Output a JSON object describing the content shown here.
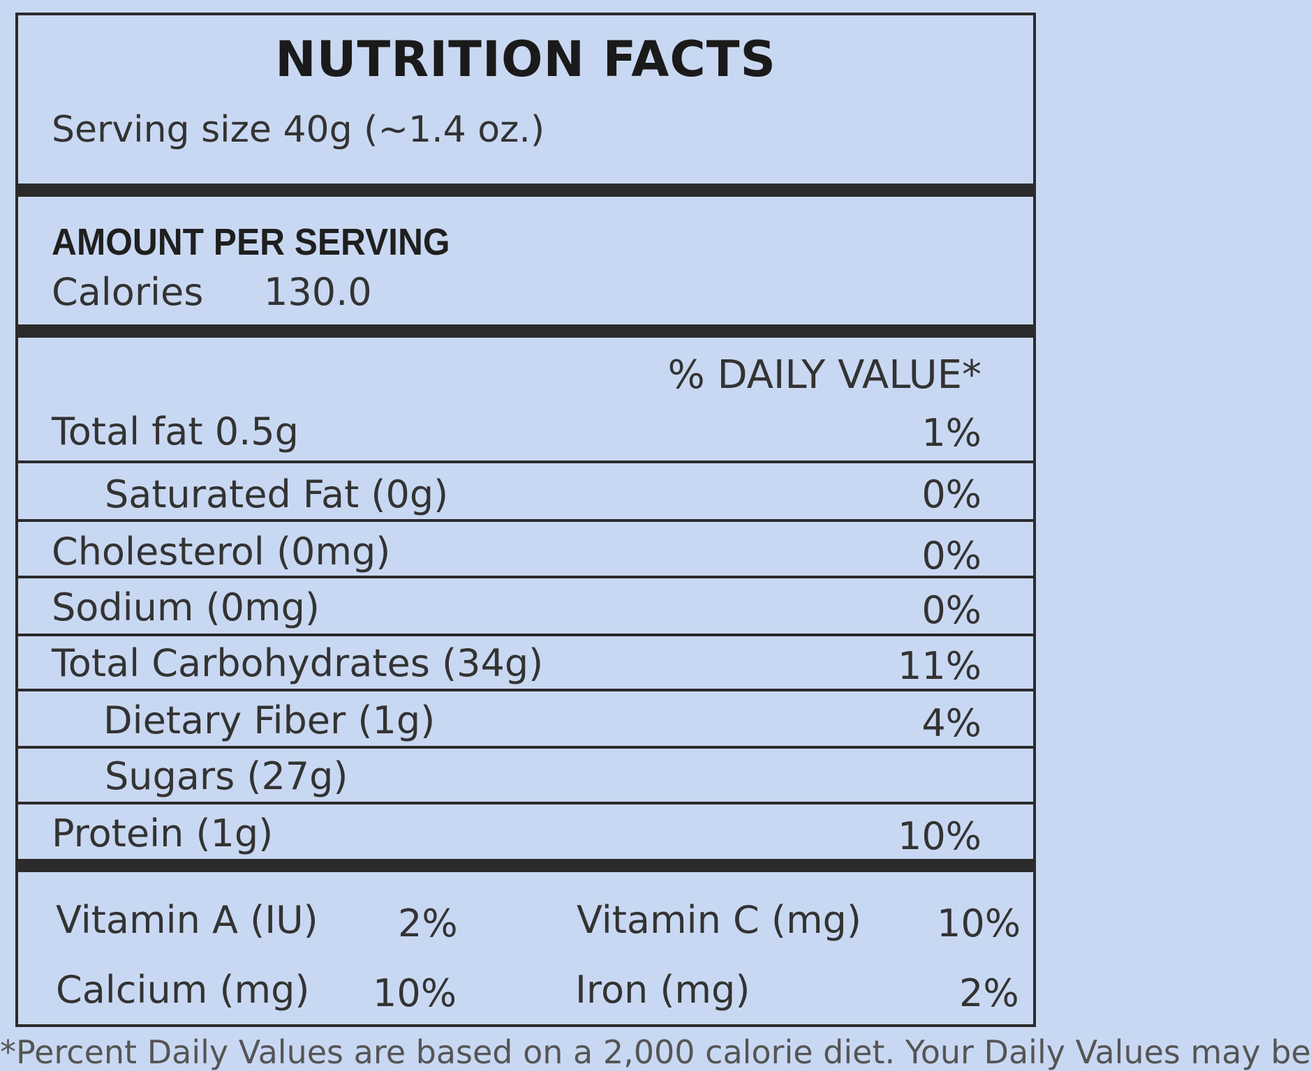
{
  "label": {
    "title": "NUTRITION FACTS",
    "serving_size": "Serving size 40g (~1.4 oz.)",
    "amount_per_serving": "AMOUNT PER SERVING",
    "calories_label": "Calories",
    "calories_value": "130.0",
    "daily_value_header": "% DAILY VALUE*",
    "nutrients": [
      {
        "label": "Total fat 0.5g",
        "pct": "1%",
        "indent": false
      },
      {
        "label": "Saturated Fat (0g)",
        "pct": "0%",
        "indent": true
      },
      {
        "label": "Cholesterol (0mg)",
        "pct": "0%",
        "indent": false
      },
      {
        "label": "Sodium (0mg)",
        "pct": "0%",
        "indent": false
      },
      {
        "label": "Total Carbohydrates (34g)",
        "pct": "11%",
        "indent": false
      },
      {
        "label": "Dietary Fiber (1g)",
        "pct": "4%",
        "indent": true
      },
      {
        "label": "Sugars (27g)",
        "pct": "",
        "indent": true
      },
      {
        "label": "Protein (1g)",
        "pct": "10%",
        "indent": false
      }
    ],
    "vitamins": [
      {
        "label": "Vitamin A (IU)",
        "pct": "2%"
      },
      {
        "label": "Vitamin C (mg)",
        "pct": "10%"
      },
      {
        "label": "Calcium (mg)",
        "pct": "10%"
      },
      {
        "label": "Iron (mg)",
        "pct": "2%"
      }
    ],
    "footnote": "*Percent Daily Values are based on a 2,000 calorie diet. Your Daily Values may be"
  },
  "colors": {
    "background": "#c9d8f2",
    "rule": "#2b2b2b",
    "text": "#333333"
  }
}
